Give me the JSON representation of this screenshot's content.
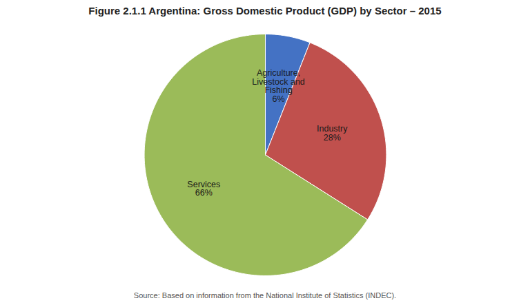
{
  "chart_data": {
    "type": "pie",
    "title": "Figure 2.1.1 Argentina: Gross Domestic Product (GDP) by Sector – 2015",
    "caption": "Source: Based on information from the National Institute of Statistics (INDEC).",
    "categories": [
      "Agriculture,\nLivestock and\nFishing",
      "Industry",
      "Services"
    ],
    "values": [
      6,
      28,
      66
    ],
    "value_labels": [
      "6%",
      "28%",
      "66%"
    ],
    "colors": [
      "#4472C4",
      "#C0504D",
      "#9BBB59"
    ],
    "data_labels": true,
    "legend": false
  }
}
